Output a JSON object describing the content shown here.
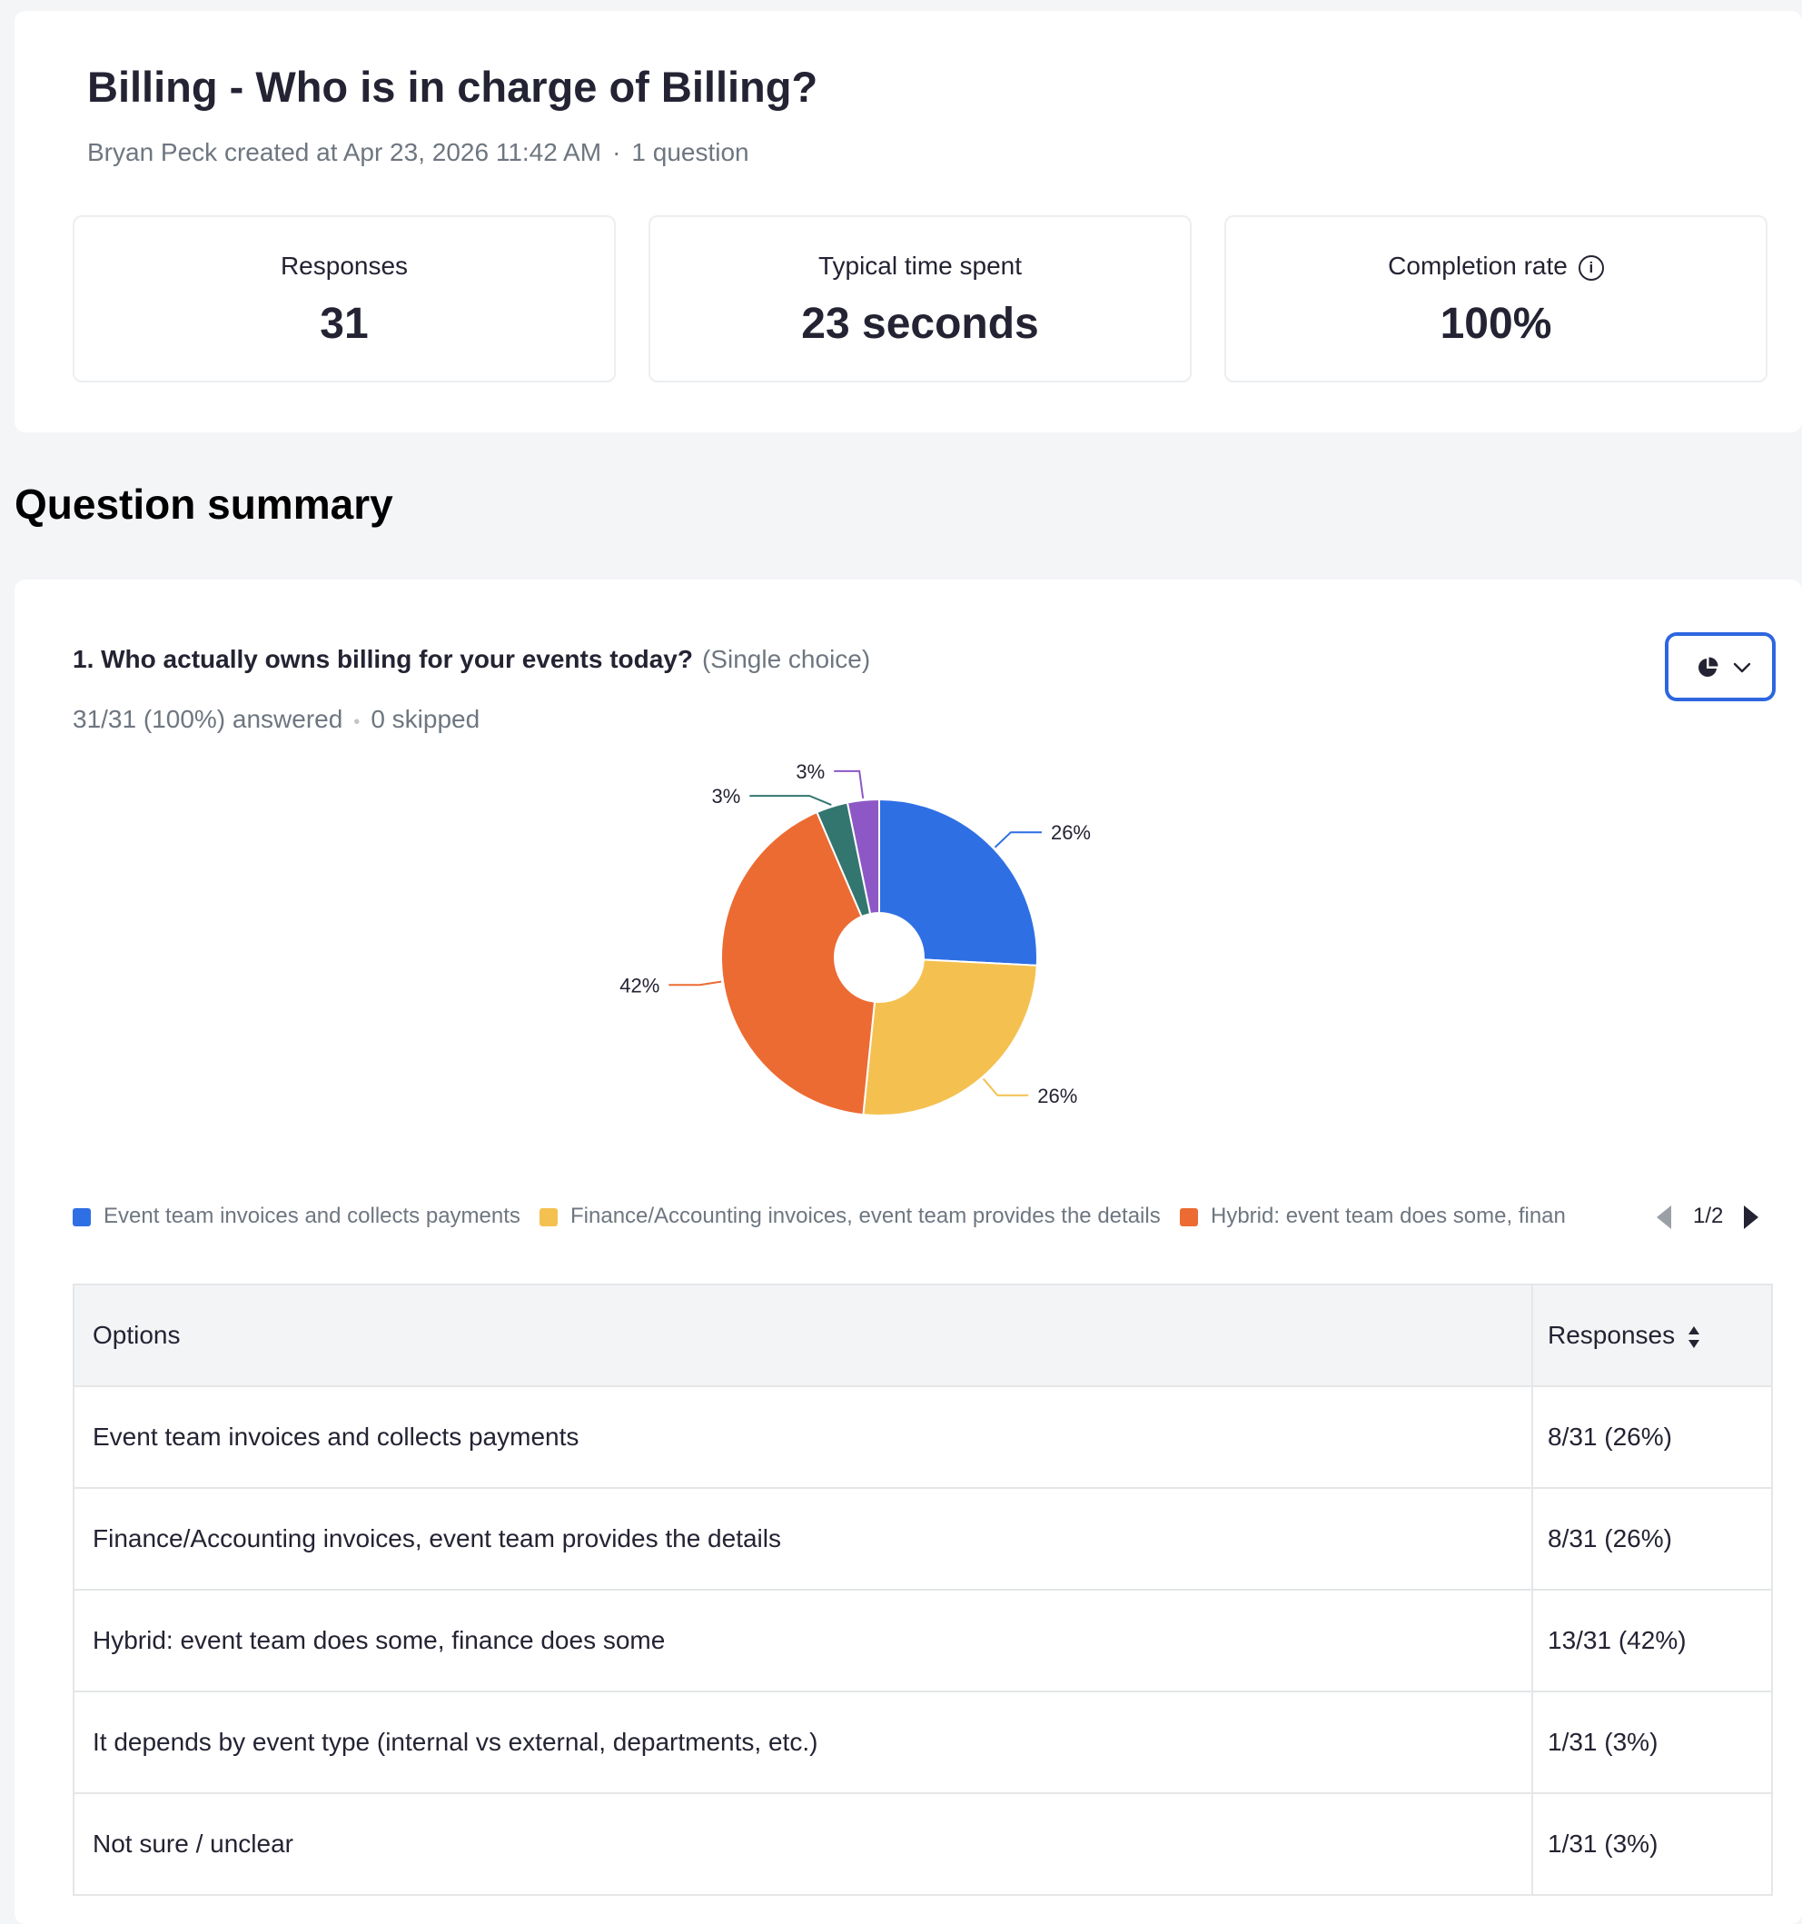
{
  "header": {
    "title": "Billing - Who is in charge of Billing?",
    "creator_line": "Bryan Peck created at Apr 23, 2026 11:42 AM",
    "separator": "·",
    "question_count": "1 question"
  },
  "stats": [
    {
      "label": "Responses",
      "value": "31"
    },
    {
      "label": "Typical time spent",
      "value": "23 seconds"
    },
    {
      "label": "Completion rate",
      "value": "100%"
    }
  ],
  "section_title": "Question summary",
  "question": {
    "title": "1. Who actually owns billing for your events today?",
    "type": "(Single choice)",
    "answered": "31/31 (100%) answered",
    "skipped": "0 skipped",
    "chart_type_icon": "pie-chart-icon"
  },
  "chart_data": {
    "type": "pie",
    "donut": true,
    "categories": [
      "Event team invoices and collects payments",
      "Finance/Accounting invoices, event team provides the details",
      "Hybrid: event team does some, finance does some",
      "It depends by event type (internal vs external, departments, etc.)",
      "Not sure / unclear"
    ],
    "values": [
      8,
      8,
      13,
      1,
      1
    ],
    "data_labels": [
      "26%",
      "26%",
      "42%",
      "3%",
      "3%"
    ],
    "colors": [
      "#2f6fe4",
      "#f4c150",
      "#ec6b33",
      "#33766f",
      "#8d58c6"
    ],
    "legend_placement": "bottom"
  },
  "legend": {
    "items": [
      "Event team invoices and collects payments",
      "Finance/Accounting invoices, event team provides the details",
      "Hybrid: event team does some, finan"
    ],
    "page": "1/2"
  },
  "table": {
    "headers": {
      "options": "Options",
      "responses": "Responses"
    },
    "rows": [
      {
        "option": "Event team invoices and collects payments",
        "responses": "8/31 (26%)"
      },
      {
        "option": "Finance/Accounting invoices, event team provides the details",
        "responses": "8/31 (26%)"
      },
      {
        "option": "Hybrid: event team does some, finance does some",
        "responses": "13/31 (42%)"
      },
      {
        "option": "It depends by event type (internal vs external, departments, etc.)",
        "responses": "1/31 (3%)"
      },
      {
        "option": "Not sure / unclear",
        "responses": "1/31 (3%)"
      }
    ]
  }
}
